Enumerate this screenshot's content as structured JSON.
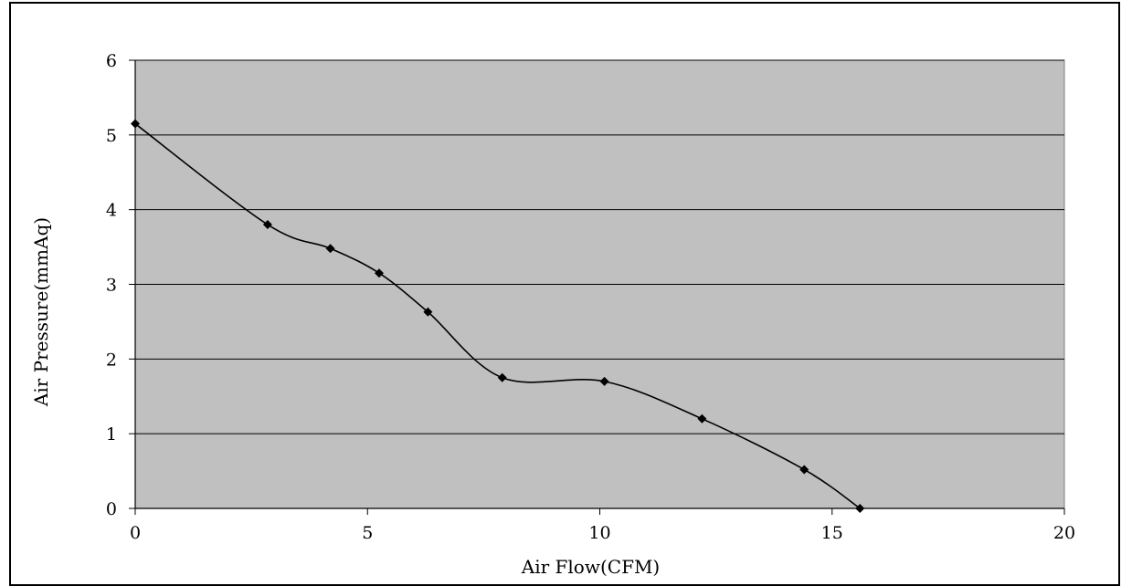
{
  "chart_data": {
    "type": "line",
    "title": "",
    "xlabel": "Air Flow(CFM)",
    "ylabel": "Air Pressure(mmAq)",
    "xlim": [
      0,
      20
    ],
    "ylim": [
      0,
      6
    ],
    "x_ticks": [
      "0",
      "5",
      "10",
      "15",
      "20"
    ],
    "y_ticks": [
      "0",
      "1",
      "2",
      "3",
      "4",
      "5",
      "6"
    ],
    "grid": "horizontal",
    "plot_background": "#c0c0c0",
    "line_color": "#000000",
    "marker": "diamond",
    "series": [
      {
        "x": [
          0,
          2.85,
          4.2,
          5.25,
          6.3,
          7.9,
          10.1,
          12.2,
          14.4,
          15.6
        ],
        "y": [
          5.15,
          3.8,
          3.48,
          3.15,
          2.63,
          1.75,
          1.7,
          1.2,
          0.52,
          0.0
        ]
      }
    ]
  }
}
